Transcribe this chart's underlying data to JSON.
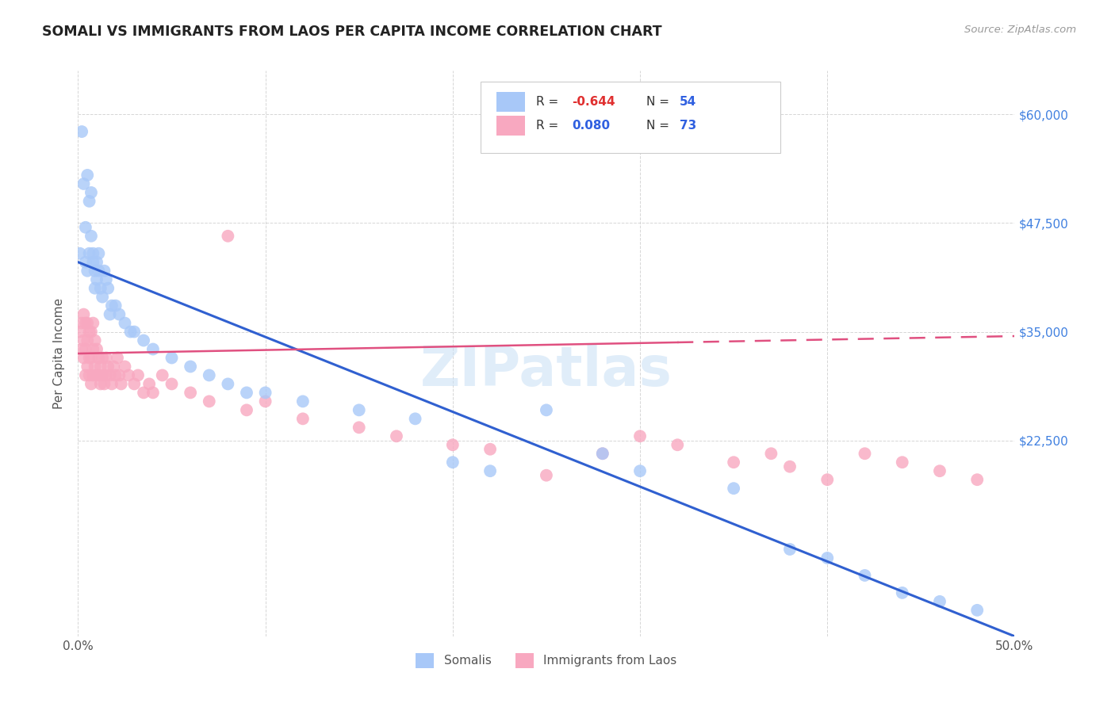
{
  "title": "SOMALI VS IMMIGRANTS FROM LAOS PER CAPITA INCOME CORRELATION CHART",
  "source": "Source: ZipAtlas.com",
  "ylabel": "Per Capita Income",
  "ytick_labels": [
    "$60,000",
    "$47,500",
    "$35,000",
    "$22,500"
  ],
  "ytick_values": [
    60000,
    47500,
    35000,
    22500
  ],
  "ylim": [
    0,
    65000
  ],
  "xlim": [
    0.0,
    0.5
  ],
  "somali_color": "#a8c8f8",
  "laos_color": "#f8a8c0",
  "somali_R": -0.644,
  "somali_N": 54,
  "laos_R": 0.08,
  "laos_N": 73,
  "legend_label_somali": "Somalis",
  "legend_label_laos": "Immigrants from Laos",
  "background_color": "#ffffff",
  "grid_color": "#cccccc",
  "watermark": "ZIPatlas",
  "line_color_somali": "#3060d0",
  "line_color_laos": "#e05080",
  "ytick_color": "#4080e0",
  "som_slope": -86000,
  "som_intercept": 43000,
  "lao_slope": 4000,
  "lao_intercept": 32500,
  "somali_x": [
    0.001,
    0.002,
    0.003,
    0.004,
    0.004,
    0.005,
    0.005,
    0.006,
    0.006,
    0.007,
    0.007,
    0.008,
    0.008,
    0.009,
    0.009,
    0.01,
    0.01,
    0.011,
    0.011,
    0.012,
    0.013,
    0.014,
    0.015,
    0.016,
    0.017,
    0.018,
    0.02,
    0.022,
    0.025,
    0.028,
    0.03,
    0.035,
    0.04,
    0.05,
    0.06,
    0.07,
    0.08,
    0.09,
    0.1,
    0.12,
    0.15,
    0.18,
    0.2,
    0.22,
    0.25,
    0.28,
    0.3,
    0.35,
    0.38,
    0.4,
    0.42,
    0.44,
    0.46,
    0.48
  ],
  "somali_y": [
    44000,
    58000,
    52000,
    43000,
    47000,
    53000,
    42000,
    50000,
    44000,
    51000,
    46000,
    43000,
    44000,
    42000,
    40000,
    43000,
    41000,
    42000,
    44000,
    40000,
    39000,
    42000,
    41000,
    40000,
    37000,
    38000,
    38000,
    37000,
    36000,
    35000,
    35000,
    34000,
    33000,
    32000,
    31000,
    30000,
    29000,
    28000,
    28000,
    27000,
    26000,
    25000,
    20000,
    19000,
    26000,
    21000,
    19000,
    17000,
    10000,
    9000,
    7000,
    5000,
    4000,
    3000
  ],
  "laos_x": [
    0.001,
    0.002,
    0.002,
    0.003,
    0.003,
    0.003,
    0.004,
    0.004,
    0.004,
    0.005,
    0.005,
    0.005,
    0.006,
    0.006,
    0.006,
    0.007,
    0.007,
    0.007,
    0.008,
    0.008,
    0.008,
    0.009,
    0.009,
    0.01,
    0.01,
    0.011,
    0.011,
    0.012,
    0.012,
    0.013,
    0.013,
    0.014,
    0.015,
    0.015,
    0.016,
    0.017,
    0.018,
    0.019,
    0.02,
    0.021,
    0.022,
    0.023,
    0.025,
    0.027,
    0.03,
    0.032,
    0.035,
    0.038,
    0.04,
    0.045,
    0.05,
    0.06,
    0.07,
    0.08,
    0.09,
    0.1,
    0.12,
    0.15,
    0.17,
    0.2,
    0.22,
    0.25,
    0.28,
    0.3,
    0.32,
    0.35,
    0.37,
    0.38,
    0.4,
    0.42,
    0.44,
    0.46,
    0.48
  ],
  "laos_y": [
    35000,
    33000,
    36000,
    32000,
    34000,
    37000,
    30000,
    33000,
    36000,
    31000,
    34000,
    36000,
    30000,
    32000,
    35000,
    29000,
    32000,
    35000,
    30000,
    33000,
    36000,
    31000,
    34000,
    30000,
    33000,
    30000,
    32000,
    29000,
    31000,
    30000,
    32000,
    29000,
    30000,
    32000,
    31000,
    30000,
    29000,
    31000,
    30000,
    32000,
    30000,
    29000,
    31000,
    30000,
    29000,
    30000,
    28000,
    29000,
    28000,
    30000,
    29000,
    28000,
    27000,
    46000,
    26000,
    27000,
    25000,
    24000,
    23000,
    22000,
    21500,
    18500,
    21000,
    23000,
    22000,
    20000,
    21000,
    19500,
    18000,
    21000,
    20000,
    19000,
    18000
  ]
}
